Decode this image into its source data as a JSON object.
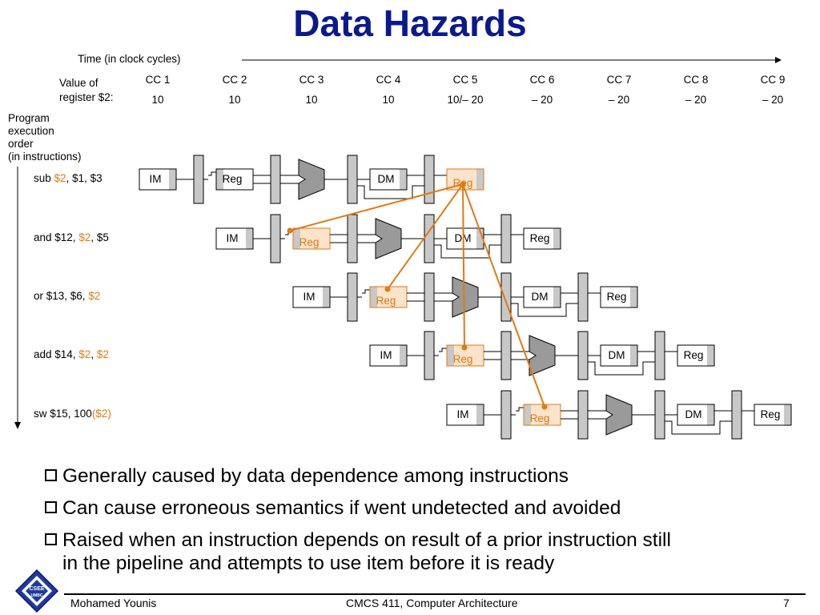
{
  "title": "Data Hazards",
  "time_label": "Time (in clock cycles)",
  "value_label_1": "Value of",
  "value_label_2": "register $2:",
  "order_label": [
    "Program",
    "execution",
    "order",
    "(in instructions)"
  ],
  "cycles": [
    {
      "label": "CC 1",
      "value": "10"
    },
    {
      "label": "CC 2",
      "value": "10"
    },
    {
      "label": "CC 3",
      "value": "10"
    },
    {
      "label": "CC 4",
      "value": "10"
    },
    {
      "label": "CC 5",
      "value": "10/– 20"
    },
    {
      "label": "CC 6",
      "value": "– 20"
    },
    {
      "label": "CC 7",
      "value": "– 20"
    },
    {
      "label": "CC 8",
      "value": "– 20"
    },
    {
      "label": "CC 9",
      "value": "– 20"
    }
  ],
  "instructions": [
    {
      "parts": [
        {
          "text": "sub ",
          "hl": false
        },
        {
          "text": "$2",
          "hl": true
        },
        {
          "text": ", $1, $3",
          "hl": false
        }
      ]
    },
    {
      "parts": [
        {
          "text": "and $12, ",
          "hl": false
        },
        {
          "text": "$2",
          "hl": true
        },
        {
          "text": ", $5",
          "hl": false
        }
      ]
    },
    {
      "parts": [
        {
          "text": "or $13, $6, ",
          "hl": false
        },
        {
          "text": "$2",
          "hl": true
        }
      ]
    },
    {
      "parts": [
        {
          "text": "add $14, ",
          "hl": false
        },
        {
          "text": "$2",
          "hl": true
        },
        {
          "text": ", ",
          "hl": false
        },
        {
          "text": "$2",
          "hl": true
        }
      ]
    },
    {
      "parts": [
        {
          "text": "sw $15, 100",
          "hl": false
        },
        {
          "text": "($2)",
          "hl": true
        }
      ]
    }
  ],
  "stage_labels": {
    "im": "IM",
    "reg": "Reg",
    "dm": "DM"
  },
  "bullets": [
    [
      "Generally caused by data dependence among instructions"
    ],
    [
      "Can cause erroneous semantics if went undetected and avoided"
    ],
    [
      "Raised when an instruction depends on result of a prior instruction still",
      "in the pipeline and attempts to use item before it is ready"
    ]
  ],
  "footer": {
    "author": "Mohamed Younis",
    "course": "CMCS 411, Computer Architecture",
    "page": "7"
  },
  "logo_text": [
    "CSEE",
    "UMBC"
  ],
  "colors": {
    "title": "#0a1a8c",
    "highlight": "#e07a12",
    "highlight_fill": "#fbe3cc",
    "gray": "#c8c8c8"
  }
}
